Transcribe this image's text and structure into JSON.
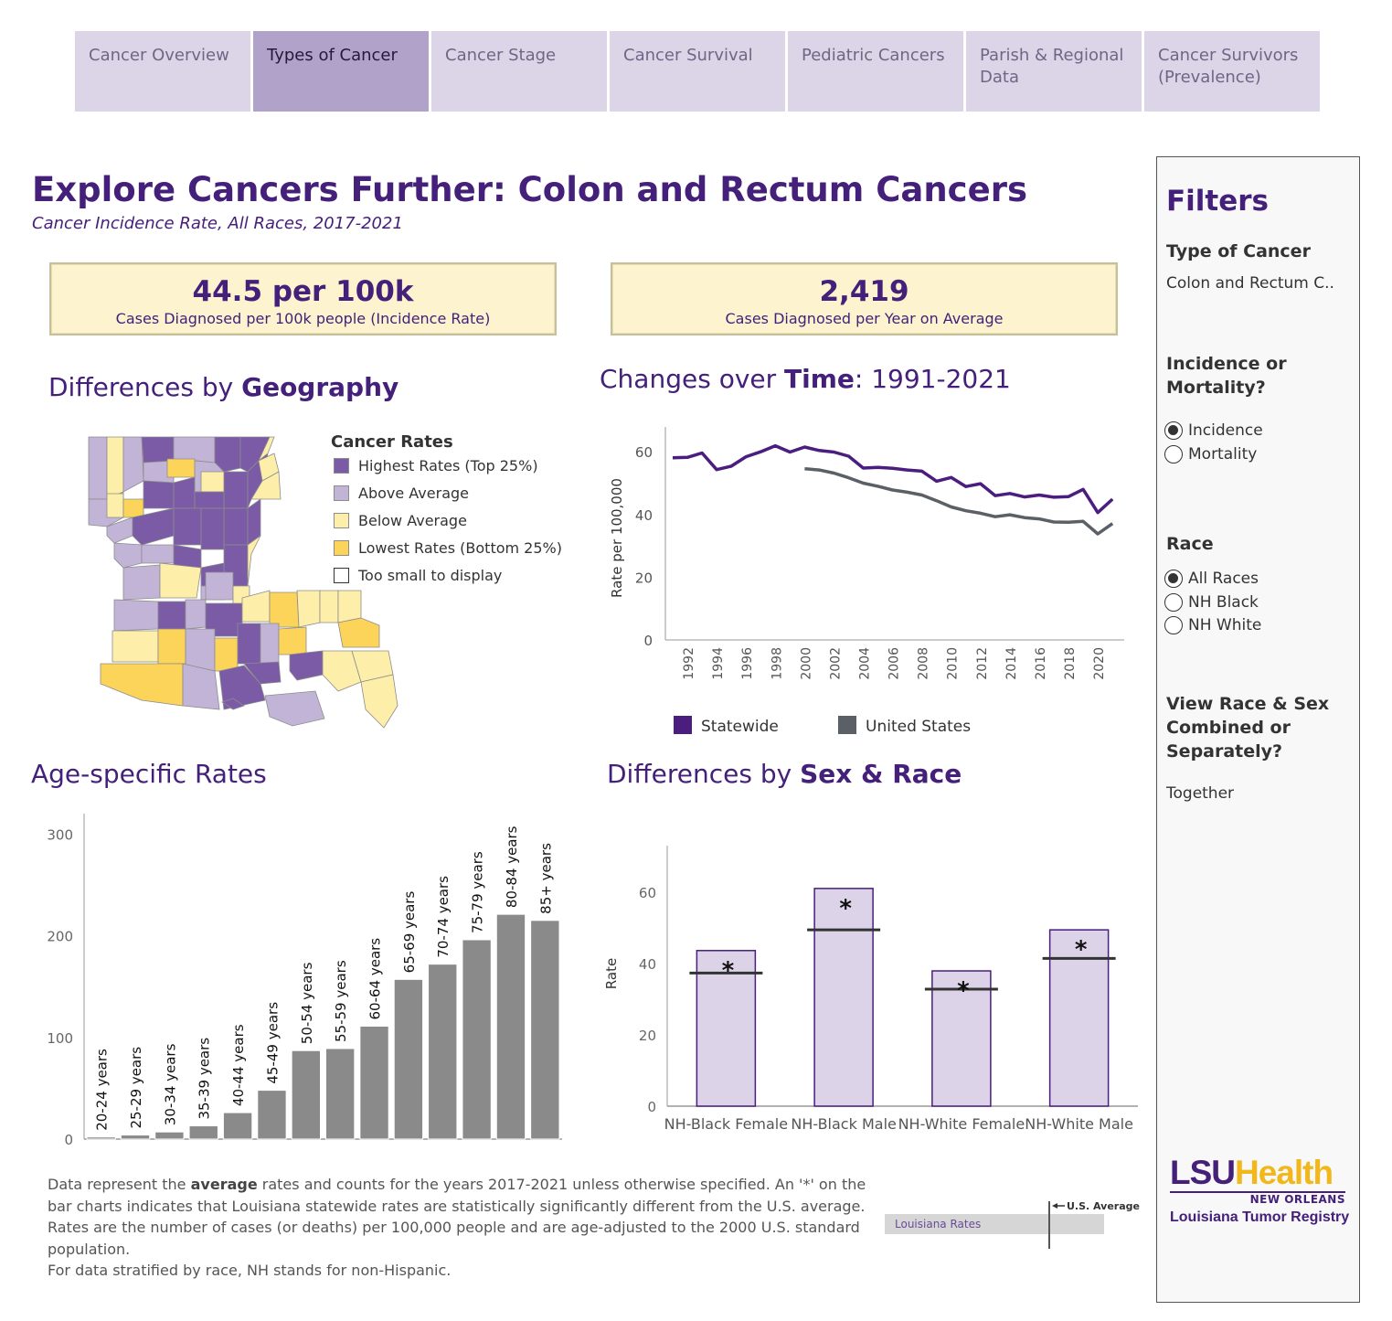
{
  "nav": {
    "tabs": [
      {
        "label": "Cancer Overview",
        "active": false
      },
      {
        "label": "Types of Cancer",
        "active": true
      },
      {
        "label": "Cancer Stage",
        "active": false
      },
      {
        "label": "Cancer Survival",
        "active": false
      },
      {
        "label": "Pediatric Cancers",
        "active": false
      },
      {
        "label": "Parish & Regional Data",
        "active": false
      },
      {
        "label": "Cancer Survivors (Prevalence)",
        "active": false
      }
    ]
  },
  "header": {
    "title": "Explore Cancers Further: Colon and Rectum Cancers",
    "subtitle": "Cancer Incidence Rate, All Races, 2017-2021"
  },
  "kpis": {
    "rate": {
      "value": "44.5 per 100k",
      "label": "Cases Diagnosed per 100k people (Incidence Rate)"
    },
    "count": {
      "value": "2,419",
      "label": "Cases Diagnosed per Year on Average"
    }
  },
  "sections": {
    "geography": {
      "prefix": "Differences by ",
      "bold": "Geography"
    },
    "time": {
      "prefix": "Changes over ",
      "bold": "Time",
      "suffix": ": 1991-2021"
    },
    "age": {
      "prefix": "Age-specific Rates"
    },
    "sexrace": {
      "prefix": "Differences by ",
      "bold": "Sex & Race"
    }
  },
  "map_legend": {
    "title": "Cancer Rates",
    "items": [
      {
        "label": "Highest Rates (Top 25%)",
        "color": "#7b5aa6"
      },
      {
        "label": "Above Average",
        "color": "#c2b4d6"
      },
      {
        "label": "Below Average",
        "color": "#fdeeaa"
      },
      {
        "label": "Lowest Rates (Bottom 25%)",
        "color": "#fcd45a"
      },
      {
        "label": "Too small to display",
        "color": "#ffffff"
      }
    ]
  },
  "colors": {
    "purple": "#45207a",
    "statewide": "#4a1d7e",
    "us": "#5b5f66",
    "age_bar": "#8a8a8a",
    "sex_bar": "#dcd3e8"
  },
  "filters": {
    "title": "Filters",
    "type_label": "Type of Cancer",
    "type_value": "Colon and Rectum C..",
    "measure_label": "Incidence or Mortality?",
    "measure_options": [
      {
        "label": "Incidence",
        "selected": true
      },
      {
        "label": "Mortality",
        "selected": false
      }
    ],
    "race_label": "Race",
    "race_options": [
      {
        "label": "All Races",
        "selected": true
      },
      {
        "label": "NH Black",
        "selected": false
      },
      {
        "label": "NH White",
        "selected": false
      }
    ],
    "view_label": "View Race & Sex Combined or Separately?",
    "view_value": "Together"
  },
  "logo": {
    "main_left": "LSU",
    "main_right": "Health",
    "sub": "NEW ORLEANS",
    "registry": "Louisiana Tumor Registry"
  },
  "footnote": {
    "line1_pre": "Data represent the ",
    "line1_bold": "average",
    "line1_post": " rates and counts for the years 2017-2021 unless otherwise specified. An '*' on the bar charts indicates that Louisiana statewide rates are statistically significantly different from the U.S. average. Rates are the number of cases (or deaths) per 100,000 people and are age-adjusted to the 2000 U.S. standard population.",
    "line2": "For data stratified by race, NH stands for non-Hispanic."
  },
  "legend_key": {
    "us_label": "U.S. Average",
    "la_label": "Louisiana Rates"
  },
  "chart_data": [
    {
      "id": "time",
      "type": "line",
      "ylabel": "Rate per 100,000",
      "ylim": [
        0,
        65
      ],
      "yticks": [
        0,
        20,
        40,
        60
      ],
      "xticks": [
        1992,
        1994,
        1996,
        1998,
        2000,
        2002,
        2004,
        2006,
        2008,
        2010,
        2012,
        2014,
        2016,
        2018,
        2020
      ],
      "series": [
        {
          "name": "Statewide",
          "x": [
            1991,
            1992,
            1993,
            1994,
            1995,
            1996,
            1997,
            1998,
            1999,
            2000,
            2001,
            2002,
            2003,
            2004,
            2005,
            2006,
            2007,
            2008,
            2009,
            2010,
            2011,
            2012,
            2013,
            2014,
            2015,
            2016,
            2017,
            2018,
            2019,
            2020,
            2021
          ],
          "y": [
            58.1,
            58.2,
            59.6,
            54.3,
            55.4,
            58.4,
            60.0,
            61.9,
            59.9,
            61.5,
            60.4,
            59.9,
            58.6,
            54.8,
            55.0,
            54.7,
            54.2,
            53.8,
            50.6,
            51.8,
            48.9,
            49.8,
            46.0,
            46.7,
            45.6,
            46.2,
            45.5,
            45.7,
            48.0,
            40.6,
            44.9
          ]
        },
        {
          "name": "United States",
          "x": [
            2000,
            2001,
            2002,
            2003,
            2004,
            2005,
            2006,
            2007,
            2008,
            2009,
            2010,
            2011,
            2012,
            2013,
            2014,
            2015,
            2016,
            2017,
            2018,
            2019,
            2020,
            2021
          ],
          "y": [
            54.6,
            54.2,
            53.2,
            51.7,
            50.0,
            49.0,
            47.8,
            47.1,
            46.2,
            44.4,
            42.4,
            41.2,
            40.4,
            39.3,
            39.9,
            39.0,
            38.6,
            37.6,
            37.5,
            37.8,
            33.8,
            37.1
          ]
        }
      ],
      "legend": [
        "Statewide",
        "United States"
      ]
    },
    {
      "id": "age",
      "type": "bar",
      "categories": [
        "20-24 years",
        "25-29 years",
        "30-34 years",
        "35-39 years",
        "40-44 years",
        "45-49 years",
        "50-54 years",
        "55-59 years",
        "60-64 years",
        "65-69 years",
        "70-74 years",
        "75-79 years",
        "80-84 years",
        "85+ years"
      ],
      "values": [
        2,
        4,
        7,
        13,
        26,
        48,
        87,
        89,
        111,
        157,
        172,
        196,
        221,
        215
      ],
      "ylim": [
        0,
        320
      ],
      "yticks": [
        0,
        100,
        200,
        300
      ]
    },
    {
      "id": "sexrace",
      "type": "bar",
      "ylabel": "Rate",
      "categories": [
        "NH-Black Female",
        "NH-Black Male",
        "NH-White Female",
        "NH-White Male"
      ],
      "values": [
        43.6,
        61.0,
        37.9,
        49.4
      ],
      "us_average": [
        37.3,
        49.4,
        32.8,
        41.4
      ],
      "significant": [
        true,
        true,
        true,
        true
      ],
      "ylim": [
        0,
        73
      ],
      "yticks": [
        0,
        20,
        40,
        60
      ]
    }
  ]
}
